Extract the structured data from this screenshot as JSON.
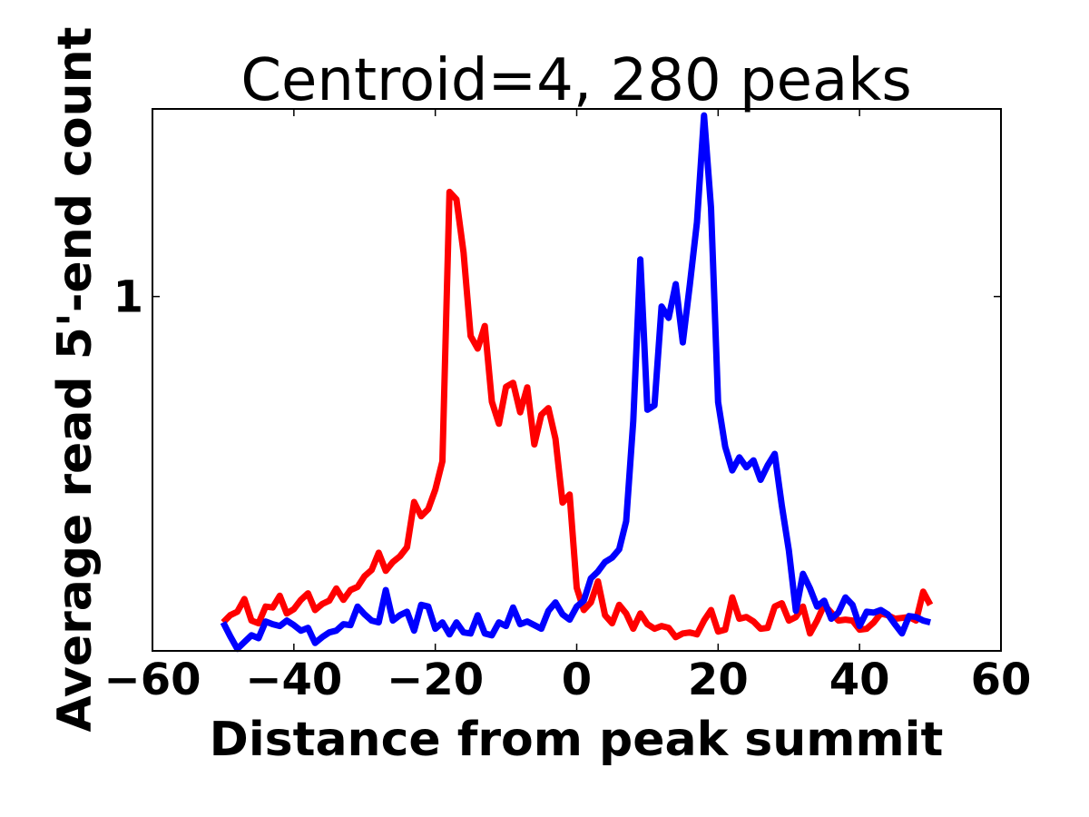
{
  "chart_data": {
    "type": "line",
    "title": "Centroid=4, 280 peaks",
    "xlabel": "Distance from peak summit",
    "ylabel": "Average read 5'-end count",
    "xlim": [
      -60,
      60
    ],
    "ylim": [
      0.27,
      2.0
    ],
    "y_scale": "log",
    "x_ticks": [
      -60,
      -40,
      -20,
      0,
      20,
      40,
      60
    ],
    "x_tick_labels": [
      "−60",
      "−40",
      "−20",
      "0",
      "20",
      "40",
      "60"
    ],
    "y_ticks": [
      1
    ],
    "y_tick_labels": [
      "1"
    ],
    "grid": false,
    "legend": "none",
    "x": [
      -50,
      -49,
      -48,
      -47,
      -46,
      -45,
      -44,
      -43,
      -42,
      -41,
      -40,
      -39,
      -38,
      -37,
      -36,
      -35,
      -34,
      -33,
      -32,
      -31,
      -30,
      -29,
      -28,
      -27,
      -26,
      -25,
      -24,
      -23,
      -22,
      -21,
      -20,
      -19,
      -18,
      -17,
      -16,
      -15,
      -14,
      -13,
      -12,
      -11,
      -10,
      -9,
      -8,
      -7,
      -6,
      -5,
      -4,
      -3,
      -2,
      -1,
      0,
      1,
      2,
      3,
      4,
      5,
      6,
      7,
      8,
      9,
      10,
      11,
      12,
      13,
      14,
      15,
      16,
      17,
      18,
      19,
      20,
      21,
      22,
      23,
      24,
      25,
      26,
      27,
      28,
      29,
      30,
      31,
      32,
      33,
      34,
      35,
      36,
      37,
      38,
      39,
      40,
      41,
      42,
      43,
      44,
      45,
      46,
      47,
      48,
      49,
      50
    ],
    "series": [
      {
        "color": "#ff0000",
        "values": [
          0.3,
          0.308,
          0.312,
          0.327,
          0.302,
          0.299,
          0.318,
          0.317,
          0.331,
          0.31,
          0.315,
          0.326,
          0.334,
          0.314,
          0.321,
          0.325,
          0.34,
          0.326,
          0.338,
          0.342,
          0.356,
          0.364,
          0.388,
          0.363,
          0.375,
          0.383,
          0.396,
          0.468,
          0.444,
          0.456,
          0.49,
          0.544,
          1.472,
          1.431,
          1.177,
          0.864,
          0.825,
          0.897,
          0.678,
          0.625,
          0.716,
          0.727,
          0.652,
          0.715,
          0.579,
          0.646,
          0.662,
          0.591,
          0.467,
          0.481,
          0.341,
          0.314,
          0.323,
          0.349,
          0.308,
          0.299,
          0.32,
          0.31,
          0.293,
          0.31,
          0.298,
          0.293,
          0.296,
          0.294,
          0.284,
          0.288,
          0.289,
          0.287,
          0.302,
          0.314,
          0.29,
          0.292,
          0.329,
          0.304,
          0.306,
          0.301,
          0.293,
          0.294,
          0.318,
          0.322,
          0.302,
          0.306,
          0.318,
          0.288,
          0.302,
          0.32,
          0.311,
          0.302,
          0.303,
          0.302,
          0.292,
          0.293,
          0.3,
          0.31,
          0.308,
          0.304,
          0.305,
          0.306,
          0.302,
          0.336,
          0.32
        ]
      },
      {
        "color": "#0000ff",
        "values": [
          0.3,
          0.285,
          0.272,
          0.279,
          0.286,
          0.283,
          0.301,
          0.298,
          0.296,
          0.302,
          0.297,
          0.291,
          0.294,
          0.278,
          0.284,
          0.289,
          0.291,
          0.298,
          0.297,
          0.318,
          0.309,
          0.302,
          0.3,
          0.338,
          0.302,
          0.308,
          0.312,
          0.291,
          0.32,
          0.318,
          0.293,
          0.3,
          0.287,
          0.3,
          0.289,
          0.288,
          0.308,
          0.288,
          0.286,
          0.3,
          0.296,
          0.317,
          0.298,
          0.301,
          0.297,
          0.293,
          0.313,
          0.323,
          0.309,
          0.303,
          0.318,
          0.325,
          0.353,
          0.362,
          0.375,
          0.381,
          0.393,
          0.436,
          0.631,
          1.147,
          0.658,
          0.669,
          0.964,
          0.924,
          1.047,
          0.844,
          1.046,
          1.316,
          1.953,
          1.387,
          0.677,
          0.574,
          0.526,
          0.552,
          0.532,
          0.546,
          0.508,
          0.536,
          0.559,
          0.462,
          0.391,
          0.313,
          0.359,
          0.34,
          0.318,
          0.325,
          0.304,
          0.311,
          0.329,
          0.32,
          0.296,
          0.312,
          0.311,
          0.314,
          0.309,
          0.298,
          0.288,
          0.307,
          0.306,
          0.302,
          0.3
        ]
      }
    ]
  }
}
